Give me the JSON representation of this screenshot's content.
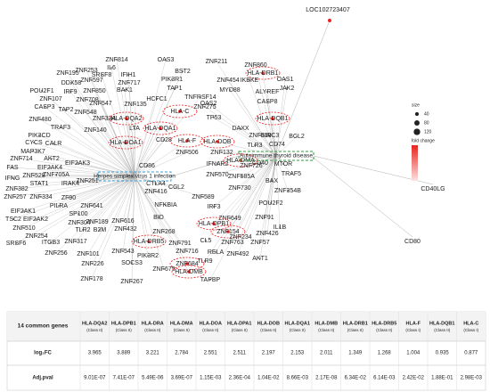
{
  "network": {
    "top_node": "LOC102723407",
    "right_nodes": [
      "CD40LG",
      "CD80"
    ],
    "hubs": [
      "Herpes simplex virus 1 infection",
      "Autoimmune thyroid disease"
    ],
    "nodes": [
      "ZNF814",
      "OAS3",
      "ZNF211",
      "ZNF860",
      "IL6",
      "ZNF195",
      "ZNF253",
      "SRSF8",
      "IFIH1",
      "BST2",
      "HLA-DRB1",
      "OAS1",
      "ZNF597",
      "ZNF717",
      "PIK3R1",
      "ZNF454",
      "IKBKE",
      "JAK2",
      "DDX58",
      "POU2F1",
      "IRF9",
      "ZNF850",
      "BAK1",
      "TAP1",
      "MYD88",
      "ALYREF",
      "ZNF708",
      "ZNF547",
      "HCFC1",
      "TNFRSF14",
      "ZNF107",
      "CASP3",
      "TAP2",
      "OAS2",
      "CASP8",
      "ZNF135",
      "HLA-C",
      "ZNF275",
      "ZNF548",
      "ZNF33A",
      "TP53",
      "HLA-DQB1",
      "ZNF480",
      "TRAF3",
      "HLA-DQA2",
      "BIRC3",
      "ZNF140",
      "PIK3CD",
      "LTA",
      "HLA-DQA1",
      "CD74",
      "BCL2",
      "CYCS",
      "CALR",
      "DAXX",
      "MAP3K7",
      "HLA-DOA1",
      "CD28",
      "HLA-F",
      "HLA-DOB",
      "IFNAR2",
      "ZNF714",
      "AKT2",
      "ZNF506",
      "ZNF132",
      "TLR3",
      "CD40",
      "MTOR",
      "HLA-DMA",
      "ZNF610",
      "FAS",
      "EIF2AK4",
      "EIF2AK3",
      "CD86",
      "ZNF726",
      "TRAF5",
      "ZNF585A",
      "BAX",
      "ZNF354B",
      "IFNG",
      "ZNF528",
      "STAT1",
      "IRAK4",
      "ZNF705A",
      "ZNF382",
      "ZNF251",
      "CTLA4",
      "CCL2",
      "ZNF416",
      "ZNF570",
      "ZNF589",
      "ZNF730",
      "POU2F2",
      "ZNF257",
      "ZNF334",
      "ZF90",
      "IRF3",
      "EIF2AK1",
      "PILRA",
      "ZNF641",
      "NFKBIA",
      "ZNF649",
      "ZNF91",
      "TSC2",
      "EIF2AK2",
      "SP100",
      "ZNF304",
      "ZNF189",
      "ZNF616",
      "ZNF432",
      "BID",
      "HLA-DPB1",
      "IL1B",
      "ZNF510",
      "ZNF254",
      "TLR2",
      "B2M",
      "ZNF268",
      "ZNF154",
      "ZNF234",
      "ZNF426",
      "SRSF6",
      "ITGB3",
      "ZNF317",
      "HLA-DRB5",
      "ZNF791",
      "CL5",
      "ZNF763",
      "ZNF57",
      "ZNF256",
      "ZNF101",
      "ZNF543",
      "PIK3R2",
      "ZNF716",
      "RELA",
      "TLR9",
      "ZNF492",
      "AKT1",
      "ZNF226",
      "SOCS3",
      "ZNF684",
      "ZNF675",
      "HLA-DMB",
      "TAPBP",
      "ZNF178",
      "ZNF267"
    ],
    "legend": {
      "size_title": "size",
      "sizes": [
        40,
        80,
        120
      ],
      "color_title": "fold change"
    }
  },
  "table": {
    "corner": "14 common genes",
    "genes": [
      "HLA-DQA2",
      "HLA-DPB1",
      "HLA-DRA",
      "HLA-DMA",
      "HLA-DOA",
      "HLA-DPA1",
      "HLA-DOB",
      "HLA-DQA1",
      "HLA-DMB",
      "HLA-DRB1",
      "HLA-DRB5",
      "HLA-F",
      "HLA-DQB1",
      "HLA-C"
    ],
    "classes": [
      "(Class II)",
      "(Class II)",
      "(Class II)",
      "(Class II)",
      "(Class II)",
      "(Class II)",
      "(Class II)",
      "(Class II)",
      "(Class II)",
      "(Class II)",
      "(Class II)",
      "(Class I)",
      "(Class II)",
      "(Class I)"
    ],
    "row_labels": [
      "log₂FC",
      "Adj.pval"
    ],
    "log2fc": [
      3.965,
      3.889,
      3.221,
      2.784,
      2.551,
      2.511,
      2.197,
      2.153,
      2.011,
      1.349,
      1.268,
      1.004,
      0.935,
      0.877
    ],
    "adj_pval": [
      "9.01E-07",
      "7.41E-07",
      "5.49E-06",
      "3.69E-07",
      "1.15E-03",
      "2.36E-04",
      "1.04E-02",
      "8.66E-03",
      "2.17E-08",
      "6.34E-02",
      "6.14E-03",
      "2.42E-02",
      "1.88E-01",
      "2.98E-03"
    ]
  }
}
